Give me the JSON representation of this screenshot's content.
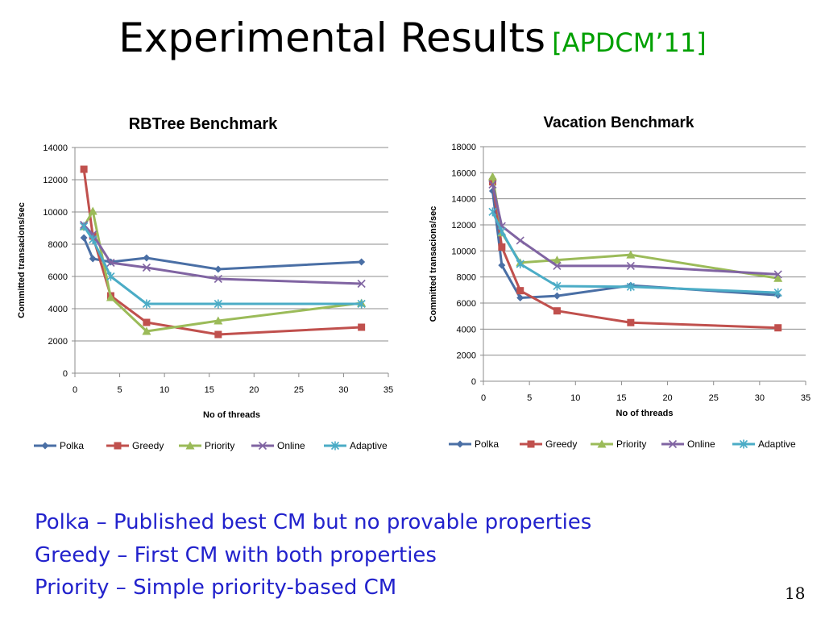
{
  "slide": {
    "title": "Experimental Results",
    "reference": "[APDCM’11]",
    "page_number": "18"
  },
  "bullets": [
    "Polka – Published best CM but no provable properties",
    "Greedy – First CM with both properties",
    "Priority – Simple priority-based CM"
  ],
  "series_colors": {
    "Polka": "#4a6fa5",
    "Greedy": "#c0504d",
    "Priority": "#9bbb59",
    "Online": "#8064a2",
    "Adaptive": "#4bacc6"
  },
  "series_markers": {
    "Polka": "diamond",
    "Greedy": "square",
    "Priority": "triangle",
    "Online": "x-mark",
    "Adaptive": "star"
  },
  "chart_data": [
    {
      "type": "line",
      "title": "RBTree Benchmark",
      "xlabel": "No of threads",
      "ylabel": "Committed transacions/sec",
      "xlim": [
        0,
        35
      ],
      "ylim": [
        0,
        14000
      ],
      "xticks": [
        0,
        5,
        10,
        15,
        20,
        25,
        30,
        35
      ],
      "yticks": [
        0,
        2000,
        4000,
        6000,
        8000,
        10000,
        12000,
        14000
      ],
      "grid": "horizontal",
      "legend": "bottom",
      "x": [
        1,
        2,
        4,
        8,
        16,
        32
      ],
      "series": [
        {
          "name": "Polka",
          "values": [
            8400,
            7100,
            6900,
            7150,
            6450,
            6900
          ]
        },
        {
          "name": "Greedy",
          "values": [
            12650,
            8500,
            4800,
            3150,
            2400,
            2850
          ]
        },
        {
          "name": "Priority",
          "values": [
            9100,
            10050,
            4700,
            2600,
            3250,
            4350
          ]
        },
        {
          "name": "Online",
          "values": [
            9200,
            8600,
            6850,
            6550,
            5850,
            5550
          ]
        },
        {
          "name": "Adaptive",
          "values": [
            9100,
            8300,
            6000,
            4300,
            4300,
            4300
          ]
        }
      ]
    },
    {
      "type": "line",
      "title": "Vacation Benchmark",
      "xlabel": "No of threads",
      "ylabel": "Committed transacions/sec",
      "xlim": [
        0,
        35
      ],
      "ylim": [
        0,
        18000
      ],
      "xticks": [
        0,
        5,
        10,
        15,
        20,
        25,
        30,
        35
      ],
      "yticks": [
        0,
        2000,
        4000,
        6000,
        8000,
        10000,
        12000,
        14000,
        16000,
        18000
      ],
      "grid": "horizontal",
      "legend": "bottom",
      "x": [
        1,
        2,
        4,
        8,
        16,
        32
      ],
      "series": [
        {
          "name": "Polka",
          "values": [
            14600,
            8900,
            6400,
            6550,
            7350,
            6600
          ]
        },
        {
          "name": "Greedy",
          "values": [
            15300,
            10300,
            6950,
            5400,
            4500,
            4100
          ]
        },
        {
          "name": "Priority",
          "values": [
            15700,
            11400,
            9100,
            9300,
            9700,
            7900
          ]
        },
        {
          "name": "Online",
          "values": [
            15100,
            11900,
            10800,
            8850,
            8850,
            8200
          ]
        },
        {
          "name": "Adaptive",
          "values": [
            13000,
            11500,
            9000,
            7300,
            7250,
            6800
          ]
        }
      ]
    }
  ]
}
